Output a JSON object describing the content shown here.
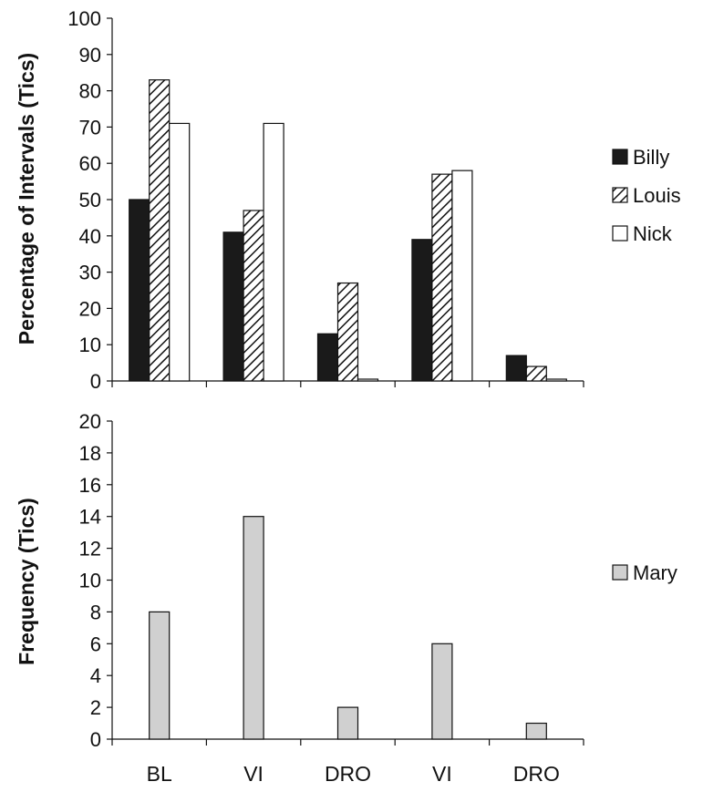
{
  "chart_data": [
    {
      "type": "bar",
      "title": "",
      "xlabel": "",
      "ylabel": "Percentage of Intervals (Tics)",
      "ylim": [
        0,
        100
      ],
      "yticks": [
        0,
        10,
        20,
        30,
        40,
        50,
        60,
        70,
        80,
        90,
        100
      ],
      "categories": [
        "BL",
        "VI",
        "DRO",
        "VI",
        "DRO"
      ],
      "categories_shown": false,
      "legend_position": "right",
      "series": [
        {
          "name": "Billy",
          "pattern": "solid-dark",
          "values": [
            50,
            41,
            13,
            39,
            7
          ]
        },
        {
          "name": "Louis",
          "pattern": "diagonal-hatch",
          "values": [
            83,
            47,
            27,
            57,
            4
          ]
        },
        {
          "name": "Nick",
          "pattern": "white",
          "values": [
            71,
            71,
            0.5,
            58,
            0.5
          ]
        }
      ]
    },
    {
      "type": "bar",
      "title": "",
      "xlabel": "",
      "ylabel": "Frequency (Tics)",
      "ylim": [
        0,
        20
      ],
      "yticks": [
        0,
        2,
        4,
        6,
        8,
        10,
        12,
        14,
        16,
        18,
        20
      ],
      "categories": [
        "BL",
        "VI",
        "DRO",
        "VI",
        "DRO"
      ],
      "categories_shown": true,
      "legend_position": "right",
      "series": [
        {
          "name": "Mary",
          "pattern": "light-gray",
          "values": [
            8,
            14,
            2,
            6,
            1
          ]
        }
      ]
    }
  ]
}
